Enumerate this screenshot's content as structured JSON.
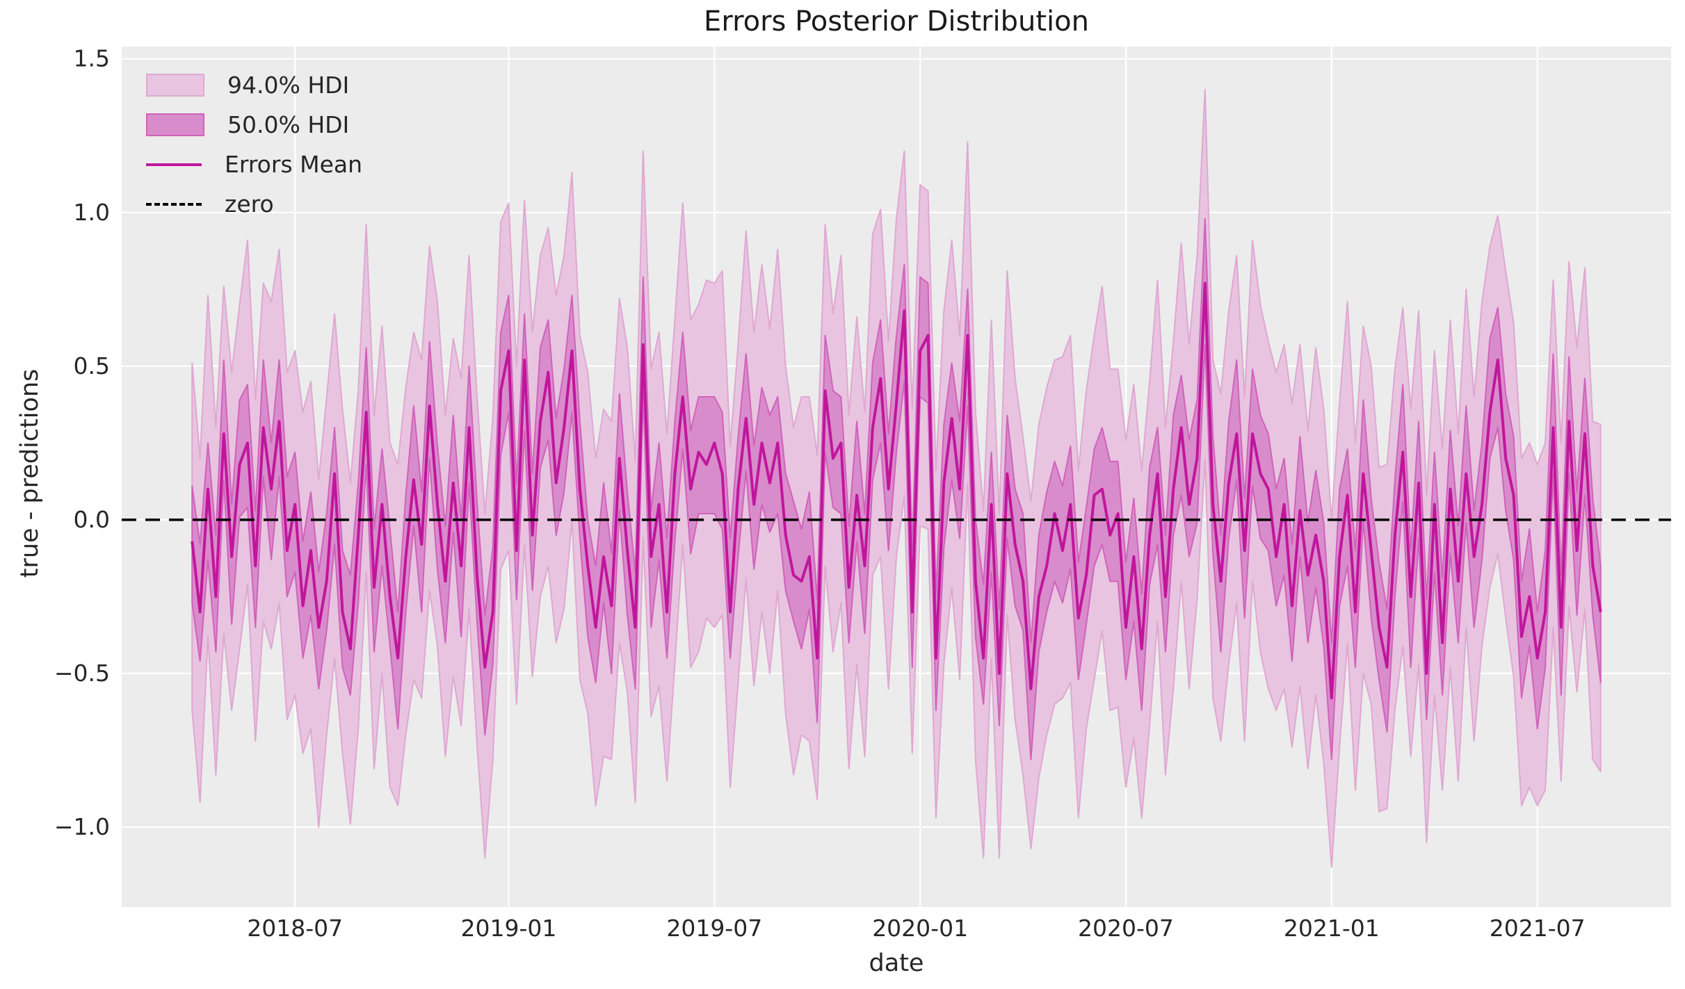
{
  "figure": {
    "title": "Errors Posterior Distribution"
  },
  "legend": {
    "items": [
      {
        "label": "94.0% HDI",
        "kind": "patch",
        "fill": "#e8c4e0",
        "edge": "#dfa8d2"
      },
      {
        "label": "50.0% HDI",
        "kind": "patch",
        "fill": "#d98ccb",
        "edge": "#cf63bb"
      },
      {
        "label": "Errors Mean",
        "kind": "line",
        "color": "#c0169c"
      },
      {
        "label": "zero",
        "kind": "dashed-line",
        "color": "#000000"
      }
    ]
  },
  "chart_data": {
    "type": "line",
    "title": "Errors Posterior Distribution",
    "xlabel": "date",
    "ylabel": "true - predictions",
    "grid": true,
    "legend_position": "upper left",
    "background_color": "#ececec",
    "grid_color": "#ffffff",
    "text_color": "#262626",
    "x_start_date": "2018-04-01",
    "x_frequency": "weekly",
    "n_points": 179,
    "xlim_index": [
      -8.9,
      186.9
    ],
    "ylim": [
      -1.26,
      1.54
    ],
    "x_tick_indices": [
      13,
      40,
      66,
      92,
      118,
      144,
      170
    ],
    "x_tick_labels": [
      "2018-07",
      "2019-01",
      "2019-07",
      "2020-01",
      "2020-07",
      "2021-01",
      "2021-07"
    ],
    "y_ticks": [
      -1.0,
      -0.5,
      0.0,
      0.5,
      1.0,
      1.5
    ],
    "y_tick_labels": [
      "−1.0",
      "−0.5",
      "0.0",
      "0.5",
      "1.0",
      "1.5"
    ],
    "series": [
      {
        "name": "Errors Mean",
        "type": "line",
        "color": "#c0169c",
        "values": [
          -0.07,
          -0.3,
          0.1,
          -0.25,
          0.28,
          -0.12,
          0.18,
          0.25,
          -0.15,
          0.3,
          0.1,
          0.32,
          -0.1,
          0.05,
          -0.28,
          -0.1,
          -0.35,
          -0.2,
          0.15,
          -0.3,
          -0.42,
          -0.05,
          0.35,
          -0.22,
          0.05,
          -0.25,
          -0.45,
          -0.12,
          0.13,
          -0.08,
          0.37,
          0.05,
          -0.2,
          0.12,
          -0.15,
          0.3,
          -0.18,
          -0.48,
          -0.3,
          0.42,
          0.55,
          -0.1,
          0.52,
          -0.05,
          0.32,
          0.48,
          0.12,
          0.3,
          0.55,
          0.1,
          -0.15,
          -0.35,
          -0.12,
          -0.28,
          0.2,
          -0.1,
          -0.35,
          0.57,
          -0.12,
          0.05,
          -0.3,
          0.15,
          0.4,
          0.1,
          0.22,
          0.18,
          0.25,
          0.15,
          -0.3,
          0.1,
          0.33,
          0.05,
          0.25,
          0.12,
          0.25,
          -0.05,
          -0.18,
          -0.2,
          -0.12,
          -0.45,
          0.42,
          0.2,
          0.25,
          -0.22,
          0.08,
          -0.15,
          0.3,
          0.46,
          0.1,
          0.38,
          0.68,
          -0.3,
          0.55,
          0.6,
          -0.45,
          0.12,
          0.33,
          0.1,
          0.6,
          -0.2,
          -0.45,
          0.05,
          -0.5,
          0.15,
          -0.08,
          -0.2,
          -0.55,
          -0.25,
          -0.15,
          0.02,
          -0.1,
          0.05,
          -0.32,
          -0.18,
          0.08,
          0.1,
          -0.05,
          0.02,
          -0.35,
          -0.12,
          -0.42,
          -0.05,
          0.15,
          -0.25,
          0.1,
          0.3,
          0.05,
          0.2,
          0.77,
          0.05,
          -0.2,
          0.12,
          0.28,
          -0.1,
          0.28,
          0.15,
          0.1,
          -0.12,
          0.05,
          -0.28,
          0.03,
          -0.18,
          -0.05,
          -0.2,
          -0.58,
          -0.12,
          0.08,
          -0.3,
          0.15,
          -0.1,
          -0.35,
          -0.48,
          -0.05,
          0.22,
          -0.25,
          0.12,
          -0.5,
          0.05,
          -0.4,
          0.1,
          -0.2,
          0.15,
          -0.12,
          0.05,
          0.35,
          0.52,
          0.2,
          0.08,
          -0.38,
          -0.25,
          -0.45,
          -0.3,
          0.3,
          -0.35,
          0.32,
          -0.1,
          0.28,
          -0.15,
          -0.3
        ]
      },
      {
        "name": "94.0% HDI",
        "type": "band",
        "fill": "#e8c4e0",
        "edge": "#dfa8d2",
        "upper_offsets": [
          0.58,
          0.5,
          0.63,
          0.55,
          0.48,
          0.6,
          0.52,
          0.66,
          0.54,
          0.47,
          0.61,
          0.56,
          0.58,
          0.5,
          0.63,
          0.55,
          0.48,
          0.6,
          0.52,
          0.66,
          0.54,
          0.47,
          0.61,
          0.56,
          0.58,
          0.5,
          0.63,
          0.55,
          0.48,
          0.6,
          0.52,
          0.66,
          0.54,
          0.47,
          0.61,
          0.56,
          0.58,
          0.5,
          0.63,
          0.55,
          0.48,
          0.6,
          0.52,
          0.66,
          0.54,
          0.47,
          0.61,
          0.56,
          0.58,
          0.5,
          0.63,
          0.55,
          0.48,
          0.6,
          0.52,
          0.66,
          0.54,
          0.63,
          0.61,
          0.56,
          0.58,
          0.5,
          0.63,
          0.55,
          0.48,
          0.6,
          0.52,
          0.66,
          0.54,
          0.47,
          0.61,
          0.56,
          0.58,
          0.5,
          0.63,
          0.55,
          0.48,
          0.6,
          0.52,
          0.66,
          0.54,
          0.47,
          0.61,
          0.56,
          0.58,
          0.5,
          0.63,
          0.55,
          0.48,
          0.6,
          0.52,
          0.66,
          0.54,
          0.47,
          0.61,
          0.56,
          0.58,
          0.5,
          0.63,
          0.55,
          0.48,
          0.6,
          0.52,
          0.66,
          0.54,
          0.47,
          0.61,
          0.56,
          0.58,
          0.5,
          0.63,
          0.55,
          0.48,
          0.6,
          0.52,
          0.66,
          0.54,
          0.47,
          0.61,
          0.56,
          0.58,
          0.5,
          0.63,
          0.55,
          0.48,
          0.6,
          0.52,
          0.66,
          0.63,
          0.47,
          0.61,
          0.56,
          0.58,
          0.5,
          0.63,
          0.55,
          0.48,
          0.6,
          0.52,
          0.66,
          0.54,
          0.47,
          0.61,
          0.56,
          0.58,
          0.5,
          0.63,
          0.55,
          0.48,
          0.6,
          0.52,
          0.66,
          0.54,
          0.47,
          0.61,
          0.56,
          0.58,
          0.5,
          0.63,
          0.55,
          0.48,
          0.6,
          0.52,
          0.66,
          0.54,
          0.47,
          0.61,
          0.56,
          0.58,
          0.5,
          0.63,
          0.55,
          0.48,
          0.6,
          0.52,
          0.66,
          0.54,
          0.47,
          0.61
        ],
        "lower_offsets": [
          0.55,
          0.62,
          0.48,
          0.58,
          0.65,
          0.5,
          0.6,
          0.46,
          0.57,
          0.63,
          0.52,
          0.59,
          0.55,
          0.62,
          0.48,
          0.58,
          0.65,
          0.5,
          0.6,
          0.46,
          0.57,
          0.63,
          0.52,
          0.59,
          0.55,
          0.62,
          0.48,
          0.58,
          0.65,
          0.5,
          0.6,
          0.46,
          0.57,
          0.63,
          0.52,
          0.59,
          0.55,
          0.62,
          0.48,
          0.58,
          0.65,
          0.5,
          0.6,
          0.46,
          0.57,
          0.63,
          0.52,
          0.59,
          0.55,
          0.62,
          0.48,
          0.58,
          0.65,
          0.5,
          0.6,
          0.46,
          0.57,
          0.63,
          0.52,
          0.59,
          0.55,
          0.62,
          0.48,
          0.58,
          0.65,
          0.5,
          0.6,
          0.46,
          0.57,
          0.63,
          0.52,
          0.59,
          0.55,
          0.62,
          0.48,
          0.58,
          0.65,
          0.5,
          0.6,
          0.46,
          0.57,
          0.63,
          0.52,
          0.59,
          0.55,
          0.62,
          0.48,
          0.58,
          0.65,
          0.5,
          0.6,
          0.46,
          0.57,
          0.63,
          0.52,
          0.59,
          0.55,
          0.62,
          0.48,
          0.58,
          0.65,
          0.5,
          0.6,
          0.46,
          0.57,
          0.63,
          0.52,
          0.59,
          0.55,
          0.62,
          0.48,
          0.58,
          0.65,
          0.5,
          0.6,
          0.46,
          0.57,
          0.63,
          0.52,
          0.59,
          0.55,
          0.62,
          0.48,
          0.58,
          0.65,
          0.5,
          0.6,
          0.46,
          0.57,
          0.63,
          0.52,
          0.59,
          0.55,
          0.62,
          0.48,
          0.58,
          0.65,
          0.5,
          0.6,
          0.46,
          0.57,
          0.63,
          0.52,
          0.59,
          0.55,
          0.62,
          0.48,
          0.58,
          0.65,
          0.5,
          0.6,
          0.46,
          0.57,
          0.63,
          0.52,
          0.59,
          0.55,
          0.62,
          0.48,
          0.58,
          0.65,
          0.5,
          0.6,
          0.46,
          0.57,
          0.63,
          0.52,
          0.59,
          0.55,
          0.62,
          0.48,
          0.58,
          0.65,
          0.5,
          0.6,
          0.46,
          0.57,
          0.63,
          0.52
        ]
      },
      {
        "name": "50.0% HDI",
        "type": "band",
        "fill": "#d98ccb",
        "edge": "#cf63bb",
        "upper_offsets": [
          0.18,
          0.22,
          0.15,
          0.2,
          0.24,
          0.17,
          0.21,
          0.19,
          0.18,
          0.22,
          0.15,
          0.2,
          0.24,
          0.17,
          0.21,
          0.19,
          0.18,
          0.22,
          0.15,
          0.2,
          0.24,
          0.17,
          0.21,
          0.19,
          0.18,
          0.22,
          0.15,
          0.2,
          0.24,
          0.17,
          0.21,
          0.19,
          0.18,
          0.22,
          0.15,
          0.2,
          0.24,
          0.17,
          0.21,
          0.19,
          0.18,
          0.22,
          0.15,
          0.2,
          0.24,
          0.17,
          0.21,
          0.19,
          0.18,
          0.22,
          0.15,
          0.2,
          0.24,
          0.17,
          0.21,
          0.19,
          0.18,
          0.22,
          0.15,
          0.2,
          0.24,
          0.17,
          0.21,
          0.19,
          0.18,
          0.22,
          0.15,
          0.2,
          0.24,
          0.17,
          0.21,
          0.19,
          0.18,
          0.22,
          0.15,
          0.2,
          0.24,
          0.17,
          0.21,
          0.19,
          0.18,
          0.22,
          0.15,
          0.2,
          0.24,
          0.17,
          0.21,
          0.19,
          0.18,
          0.22,
          0.15,
          0.2,
          0.24,
          0.17,
          0.21,
          0.19,
          0.18,
          0.22,
          0.15,
          0.2,
          0.24,
          0.17,
          0.21,
          0.19,
          0.18,
          0.22,
          0.15,
          0.2,
          0.24,
          0.17,
          0.21,
          0.19,
          0.18,
          0.22,
          0.15,
          0.2,
          0.24,
          0.17,
          0.21,
          0.19,
          0.18,
          0.22,
          0.15,
          0.2,
          0.24,
          0.17,
          0.21,
          0.19,
          0.21,
          0.22,
          0.15,
          0.2,
          0.24,
          0.17,
          0.21,
          0.19,
          0.18,
          0.22,
          0.15,
          0.2,
          0.24,
          0.17,
          0.21,
          0.19,
          0.18,
          0.22,
          0.15,
          0.2,
          0.24,
          0.17,
          0.21,
          0.19,
          0.18,
          0.22,
          0.15,
          0.2,
          0.24,
          0.17,
          0.21,
          0.19,
          0.18,
          0.22,
          0.15,
          0.2,
          0.24,
          0.17,
          0.21,
          0.19,
          0.18,
          0.22,
          0.15,
          0.2,
          0.24,
          0.17,
          0.21,
          0.19,
          0.18,
          0.22,
          0.15
        ],
        "lower_offsets": [
          0.2,
          0.16,
          0.23,
          0.18,
          0.15,
          0.22,
          0.17,
          0.21,
          0.2,
          0.16,
          0.23,
          0.18,
          0.15,
          0.22,
          0.17,
          0.21,
          0.2,
          0.16,
          0.23,
          0.18,
          0.15,
          0.22,
          0.17,
          0.21,
          0.2,
          0.16,
          0.23,
          0.18,
          0.15,
          0.22,
          0.17,
          0.21,
          0.2,
          0.16,
          0.23,
          0.18,
          0.15,
          0.22,
          0.17,
          0.21,
          0.2,
          0.16,
          0.23,
          0.18,
          0.15,
          0.22,
          0.17,
          0.21,
          0.2,
          0.16,
          0.23,
          0.18,
          0.15,
          0.22,
          0.17,
          0.21,
          0.2,
          0.16,
          0.23,
          0.18,
          0.15,
          0.22,
          0.17,
          0.21,
          0.2,
          0.16,
          0.23,
          0.18,
          0.15,
          0.22,
          0.17,
          0.21,
          0.2,
          0.16,
          0.23,
          0.18,
          0.15,
          0.22,
          0.17,
          0.21,
          0.2,
          0.16,
          0.23,
          0.18,
          0.15,
          0.22,
          0.17,
          0.21,
          0.2,
          0.16,
          0.23,
          0.18,
          0.15,
          0.22,
          0.17,
          0.21,
          0.2,
          0.16,
          0.23,
          0.18,
          0.15,
          0.22,
          0.17,
          0.21,
          0.2,
          0.16,
          0.23,
          0.18,
          0.15,
          0.22,
          0.17,
          0.21,
          0.2,
          0.16,
          0.23,
          0.18,
          0.15,
          0.22,
          0.17,
          0.21,
          0.2,
          0.16,
          0.23,
          0.18,
          0.15,
          0.22,
          0.17,
          0.21,
          0.2,
          0.16,
          0.23,
          0.18,
          0.15,
          0.22,
          0.17,
          0.21,
          0.2,
          0.16,
          0.23,
          0.18,
          0.15,
          0.22,
          0.17,
          0.21,
          0.2,
          0.16,
          0.23,
          0.18,
          0.15,
          0.22,
          0.17,
          0.21,
          0.2,
          0.16,
          0.23,
          0.18,
          0.15,
          0.22,
          0.17,
          0.21,
          0.2,
          0.16,
          0.23,
          0.18,
          0.15,
          0.22,
          0.17,
          0.21,
          0.2,
          0.16,
          0.23,
          0.18,
          0.15,
          0.22,
          0.17,
          0.21,
          0.2,
          0.16,
          0.23
        ]
      },
      {
        "name": "zero",
        "type": "hline",
        "y": 0,
        "style": "dashed",
        "color": "#000000"
      }
    ]
  }
}
